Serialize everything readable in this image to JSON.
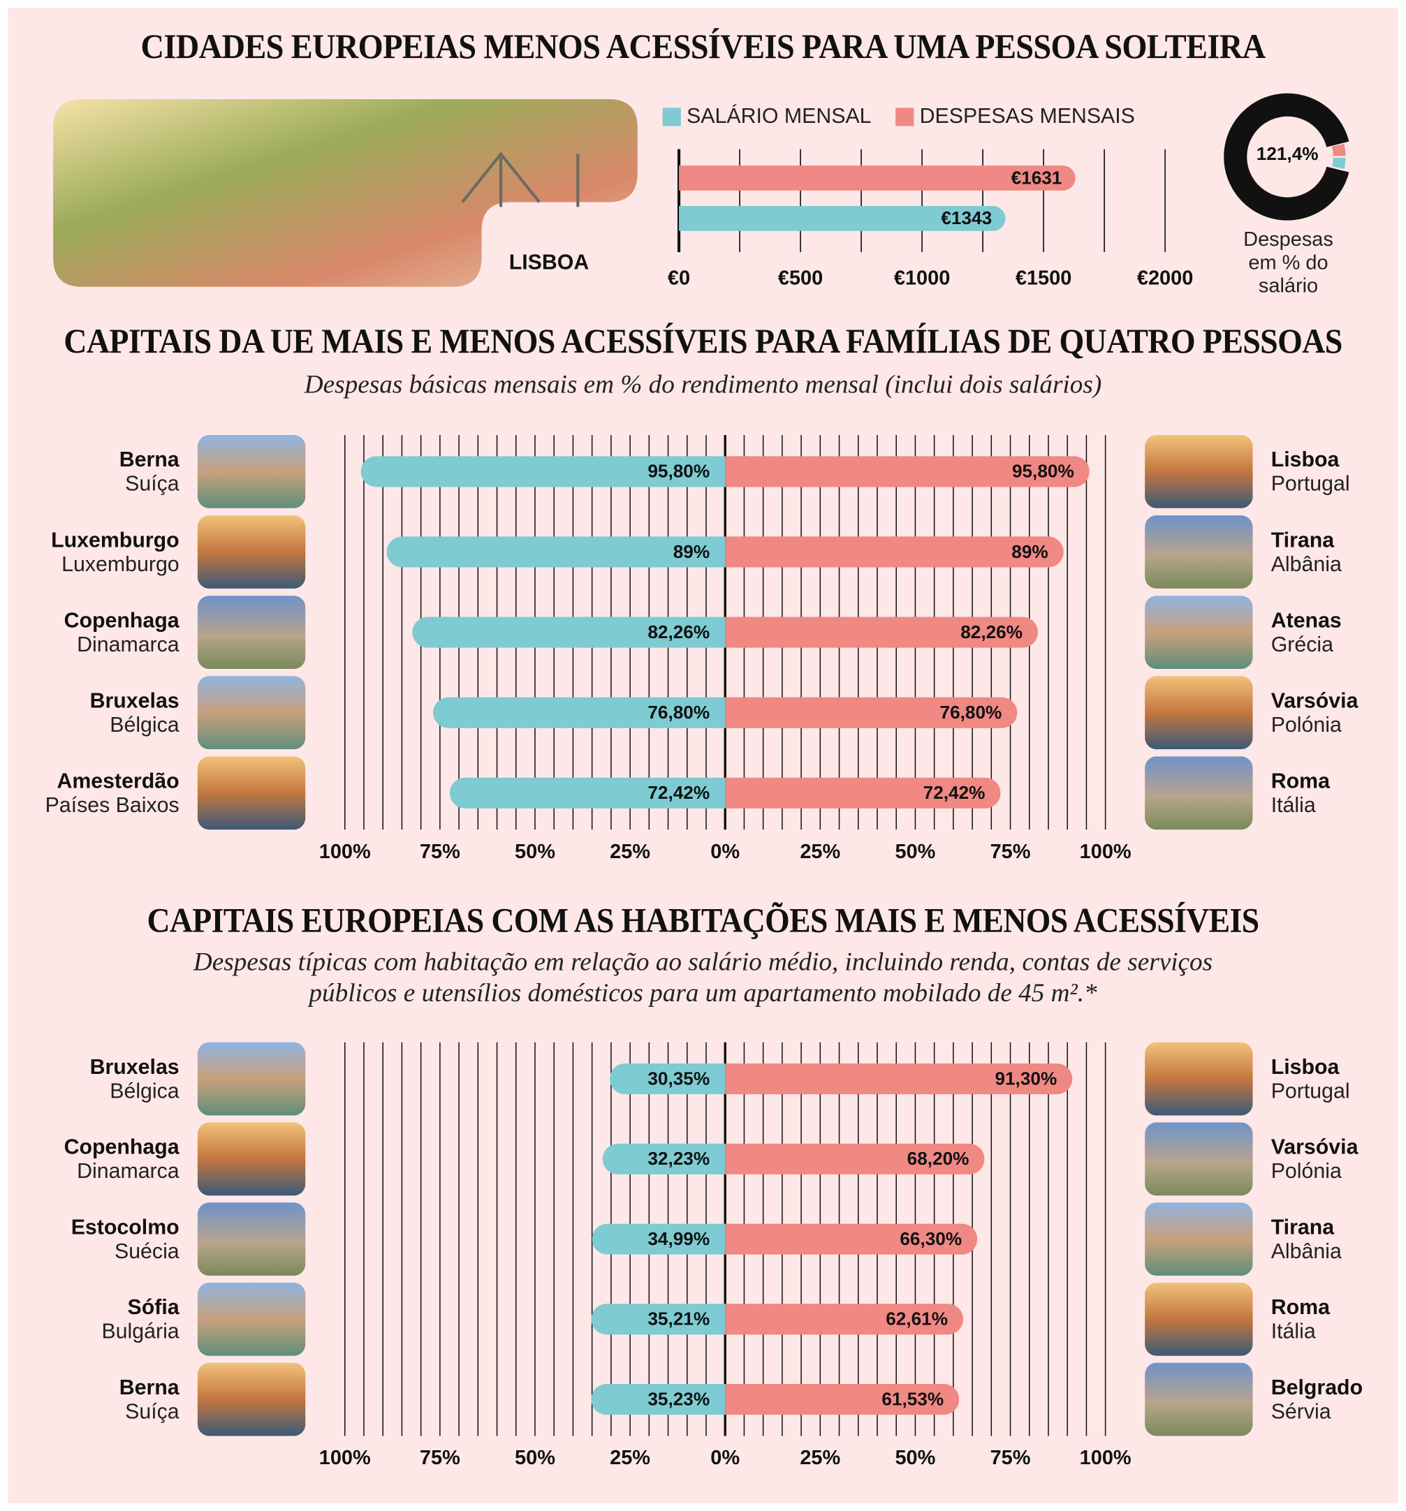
{
  "chart_data": [
    {
      "type": "bar",
      "orientation": "horizontal",
      "title": "CIDADES EUROPEIAS MENOS ACESSÍVEIS PARA UMA PESSOA SOLTEIRA",
      "image_label": "LISBOA",
      "series": [
        {
          "name": "SALÁRIO MENSAL",
          "color": "#7ecbd3",
          "values": [
            1343
          ],
          "value_labels": [
            "€1343"
          ]
        },
        {
          "name": "DESPESAS MENSAIS",
          "color": "#f08884",
          "values": [
            1631
          ],
          "value_labels": [
            "€1631"
          ]
        }
      ],
      "xlim": [
        0,
        2000
      ],
      "xticks": [
        {
          "value": 0,
          "label": "€0"
        },
        {
          "value": 500,
          "label": "€500"
        },
        {
          "value": 1000,
          "label": "€1000"
        },
        {
          "value": 1500,
          "label": "€1500"
        },
        {
          "value": 2000,
          "label": "€2000"
        }
      ],
      "minor_grid_step": 250,
      "grid": true
    },
    {
      "type": "donut",
      "color": "#111111",
      "values": [
        121.4
      ],
      "value_labels": [
        "121,4%"
      ],
      "caption": [
        "Despesas",
        "em % do",
        "salário"
      ]
    },
    {
      "type": "diverging_bar",
      "title": "CAPITAIS DA UE MAIS E MENOS ACESSÍVEIS PARA FAMÍLIAS DE QUATRO PESSOAS",
      "subtitle": [
        "Despesas básicas mensais em % do rendimento mensal (inclui dois salários)"
      ],
      "left_categories": [
        {
          "city": "Berna",
          "country": "Suíça"
        },
        {
          "city": "Luxemburgo",
          "country": "Luxemburgo"
        },
        {
          "city": "Copenhaga",
          "country": "Dinamarca"
        },
        {
          "city": "Bruxelas",
          "country": "Bélgica"
        },
        {
          "city": "Amesterdão",
          "country": "Países Baixos"
        }
      ],
      "right_categories": [
        {
          "city": "Lisboa",
          "country": "Portugal"
        },
        {
          "city": "Tirana",
          "country": "Albânia"
        },
        {
          "city": "Atenas",
          "country": "Grécia"
        },
        {
          "city": "Varsóvia",
          "country": "Polónia"
        },
        {
          "city": "Roma",
          "country": "Itália"
        }
      ],
      "series": [
        {
          "color": "#7ecbd3",
          "values": [
            95.8,
            89,
            82.26,
            76.8,
            72.42
          ],
          "value_labels": [
            "95,80%",
            "89%",
            "82,26%",
            "76,80%",
            "72,42%"
          ]
        },
        {
          "color": "#f08884",
          "values": [
            95.8,
            89,
            82.26,
            76.8,
            72.42
          ],
          "value_labels": [
            "95,80%",
            "89%",
            "82,26%",
            "76,80%",
            "72,42%"
          ]
        }
      ],
      "xlim": [
        -100,
        100
      ],
      "xticks": [
        {
          "value": -100,
          "label": "100%"
        },
        {
          "value": -75,
          "label": "75%"
        },
        {
          "value": -50,
          "label": "50%"
        },
        {
          "value": -25,
          "label": "25%"
        },
        {
          "value": 0,
          "label": "0%"
        },
        {
          "value": 25,
          "label": "25%"
        },
        {
          "value": 50,
          "label": "50%"
        },
        {
          "value": 75,
          "label": "75%"
        },
        {
          "value": 100,
          "label": "100%"
        }
      ],
      "minor_grid_step": 5,
      "grid": true
    },
    {
      "type": "diverging_bar",
      "title": "CAPITAIS EUROPEIAS COM AS HABITAÇÕES MAIS E MENOS ACESSÍVEIS",
      "subtitle": [
        "Despesas típicas com habitação em relação ao salário médio, incluindo renda, contas de serviços",
        "públicos e utensílios domésticos para um apartamento mobilado de 45 m².*"
      ],
      "left_categories": [
        {
          "city": "Bruxelas",
          "country": "Bélgica"
        },
        {
          "city": "Copenhaga",
          "country": "Dinamarca"
        },
        {
          "city": "Estocolmo",
          "country": "Suécia"
        },
        {
          "city": "Sófia",
          "country": "Bulgária"
        },
        {
          "city": "Berna",
          "country": "Suíça"
        }
      ],
      "right_categories": [
        {
          "city": "Lisboa",
          "country": "Portugal"
        },
        {
          "city": "Varsóvia",
          "country": "Polónia"
        },
        {
          "city": "Tirana",
          "country": "Albânia"
        },
        {
          "city": "Roma",
          "country": "Itália"
        },
        {
          "city": "Belgrado",
          "country": "Sérvia"
        }
      ],
      "series": [
        {
          "color": "#7ecbd3",
          "values": [
            30.35,
            32.23,
            34.99,
            35.21,
            35.23
          ],
          "value_labels": [
            "30,35%",
            "32,23%",
            "34,99%",
            "35,21%",
            "35,23%"
          ]
        },
        {
          "color": "#f08884",
          "values": [
            91.3,
            68.2,
            66.3,
            62.61,
            61.53
          ],
          "value_labels": [
            "91,30%",
            "68,20%",
            "66,30%",
            "62,61%",
            "61,53%"
          ]
        }
      ],
      "xlim": [
        -100,
        100
      ],
      "xticks": [
        {
          "value": -100,
          "label": "100%"
        },
        {
          "value": -75,
          "label": "75%"
        },
        {
          "value": -50,
          "label": "50%"
        },
        {
          "value": -25,
          "label": "25%"
        },
        {
          "value": 0,
          "label": "0%"
        },
        {
          "value": 25,
          "label": "25%"
        },
        {
          "value": 50,
          "label": "50%"
        },
        {
          "value": 75,
          "label": "75%"
        },
        {
          "value": 100,
          "label": "100%"
        }
      ],
      "minor_grid_step": 5,
      "grid": true
    }
  ]
}
